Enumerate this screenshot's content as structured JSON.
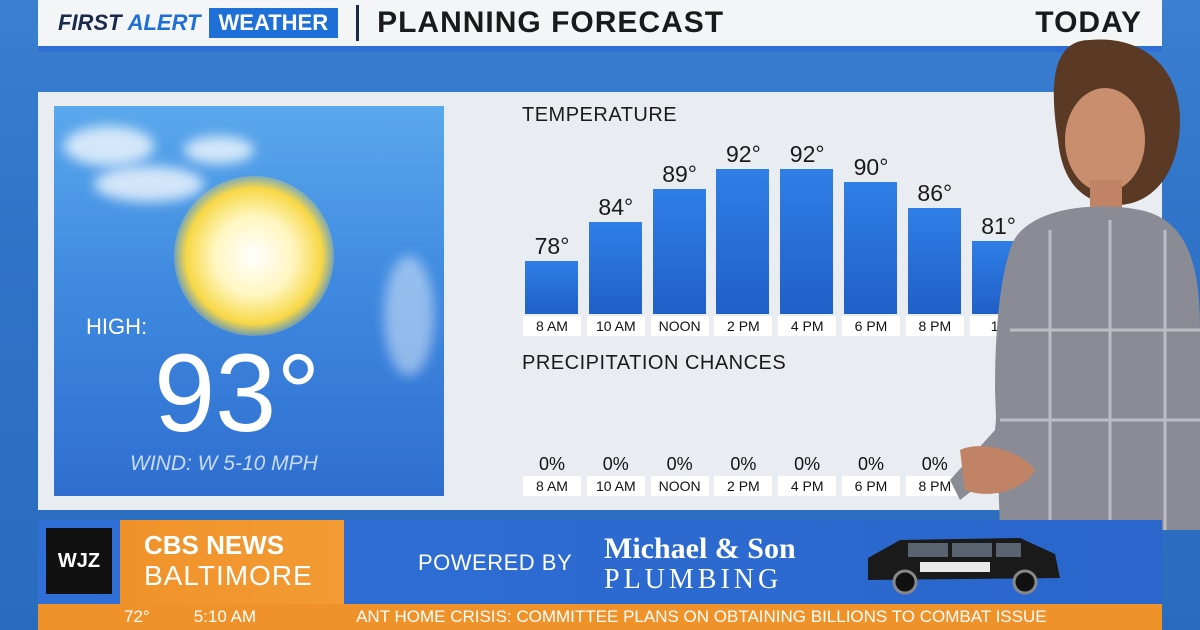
{
  "header": {
    "brand_first": "FIRST",
    "brand_alert": "ALERT",
    "brand_weather": "WEATHER",
    "title": "PLANNING FORECAST",
    "day": "TODAY"
  },
  "summary": {
    "high_label": "HIGH:",
    "high_value": "93°",
    "wind": "WIND: W 5-10 MPH"
  },
  "temperature": {
    "title": "TEMPERATURE",
    "times": [
      "8 AM",
      "10 AM",
      "NOON",
      "2 PM",
      "4 PM",
      "6 PM",
      "8 PM",
      "10"
    ],
    "values_label": [
      "78°",
      "84°",
      "89°",
      "92°",
      "92°",
      "90°",
      "86°",
      "81°"
    ]
  },
  "precipitation": {
    "title": "PRECIPITATION CHANCES",
    "times": [
      "8 AM",
      "10 AM",
      "NOON",
      "2 PM",
      "4 PM",
      "6 PM",
      "8 PM"
    ],
    "values": [
      "0%",
      "0%",
      "0%",
      "0%",
      "0%",
      "0%",
      "0%"
    ]
  },
  "chart_data": {
    "type": "bar",
    "title": "TEMPERATURE",
    "categories": [
      "8 AM",
      "10 AM",
      "NOON",
      "2 PM",
      "4 PM",
      "6 PM",
      "8 PM",
      "10"
    ],
    "values": [
      78,
      84,
      89,
      92,
      92,
      90,
      86,
      81
    ],
    "ylim": [
      70,
      95
    ]
  },
  "sponsor": {
    "station": "WJZ",
    "network": "CBS NEWS",
    "city": "BALTIMORE",
    "powered_by": "POWERED BY",
    "name": "Michael & Son",
    "sub": "PLUMBING"
  },
  "ticker": {
    "temp": "72°",
    "time": "5:10 AM",
    "headline": "ANT HOME CRISIS: COMMITTEE PLANS ON OBTAINING BILLIONS TO COMBAT ISSUE"
  },
  "colors": {
    "accent_blue": "#2f6fd6",
    "accent_orange": "#f0922a",
    "bar_blue": "#1f5fc8"
  }
}
